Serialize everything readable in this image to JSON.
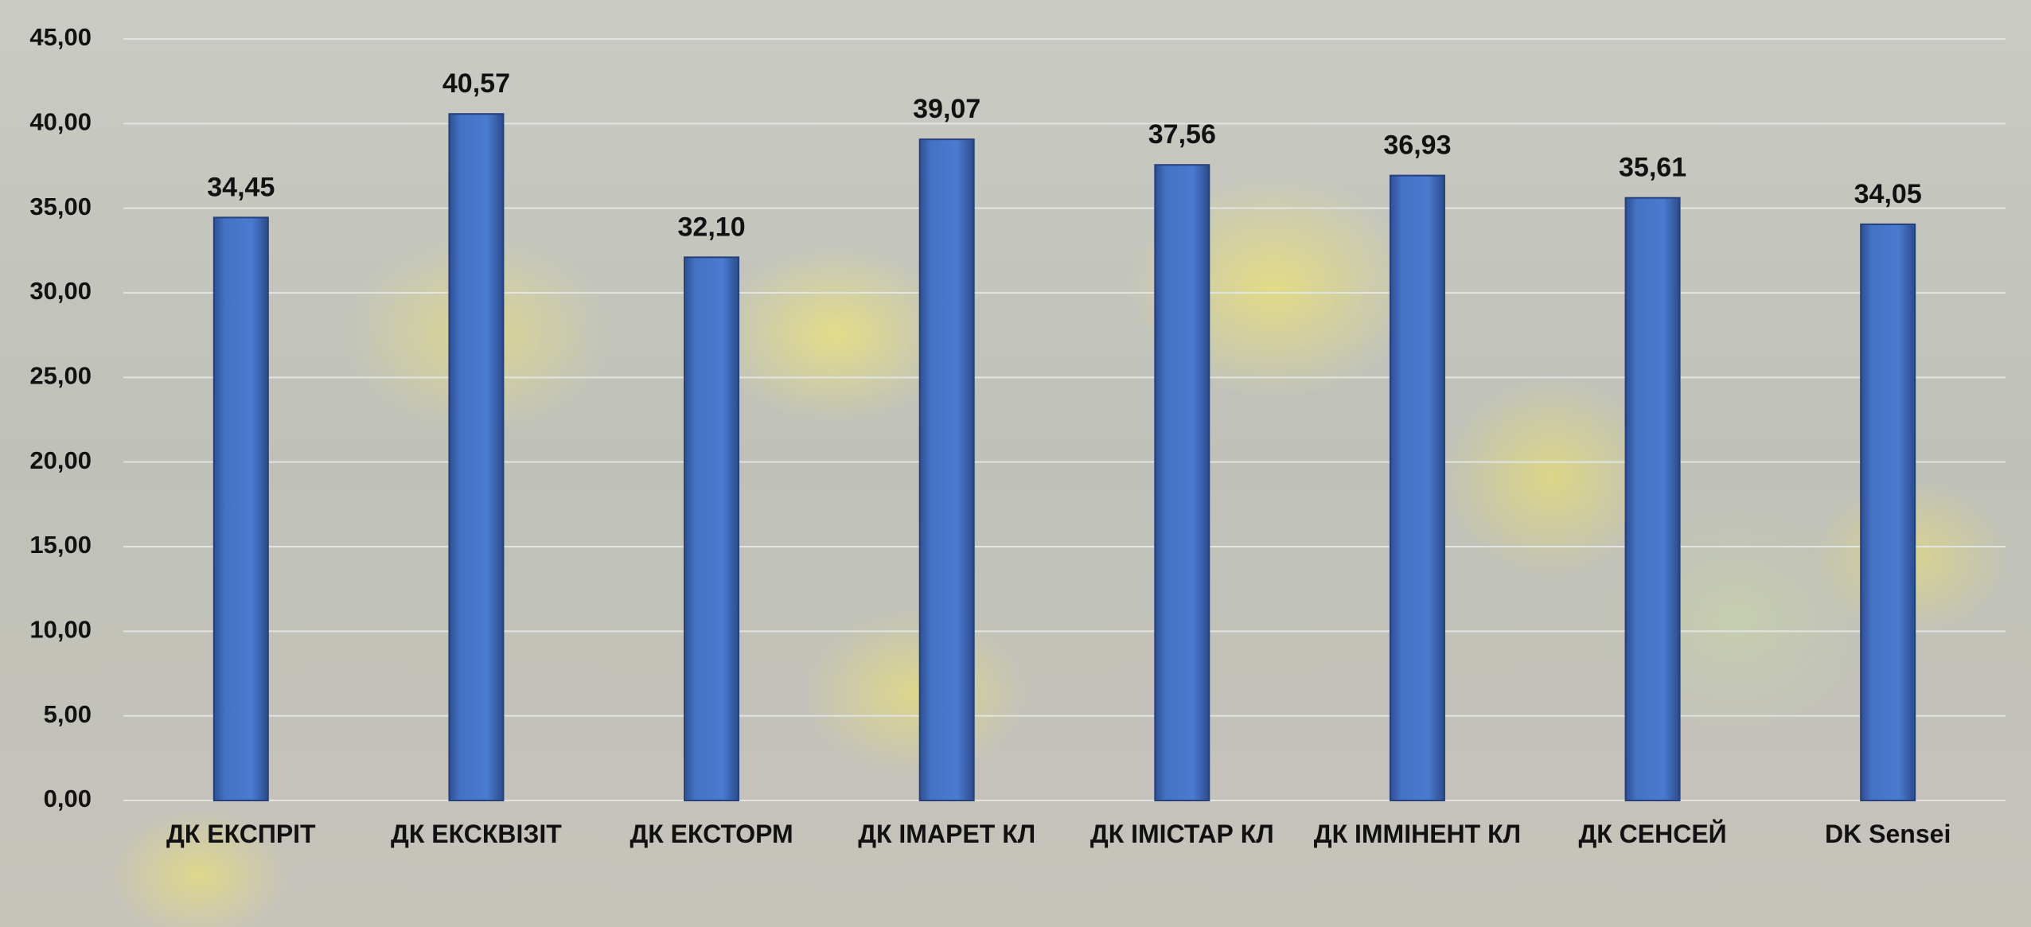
{
  "chart_data": {
    "type": "bar",
    "categories": [
      "ДК ЕКСПРІТ",
      "ДК ЕКСКВІЗІТ",
      "ДК ЕКСТОРМ",
      "ДК ІМАРЕТ КЛ",
      "ДК ІМІСТАР КЛ",
      "ДК ІММІНЕНТ КЛ",
      "ДК СЕНСЕЙ",
      "DK Sensei"
    ],
    "values": [
      34.45,
      40.57,
      32.1,
      39.07,
      37.56,
      36.93,
      35.61,
      34.05
    ],
    "value_labels": [
      "34,45",
      "40,57",
      "32,10",
      "39,07",
      "37,56",
      "36,93",
      "35,61",
      "34,05"
    ],
    "color": "#4472c4",
    "ylim": [
      0,
      45
    ],
    "yticks": [
      {
        "value": 0,
        "label": "0,00"
      },
      {
        "value": 5,
        "label": "5,00"
      },
      {
        "value": 10,
        "label": "10,00"
      },
      {
        "value": 15,
        "label": "15,00"
      },
      {
        "value": 20,
        "label": "20,00"
      },
      {
        "value": 25,
        "label": "25,00"
      },
      {
        "value": 30,
        "label": "30,00"
      },
      {
        "value": 35,
        "label": "35,00"
      },
      {
        "value": 40,
        "label": "40,00"
      },
      {
        "value": 45,
        "label": "45,00"
      }
    ],
    "grid": true
  }
}
